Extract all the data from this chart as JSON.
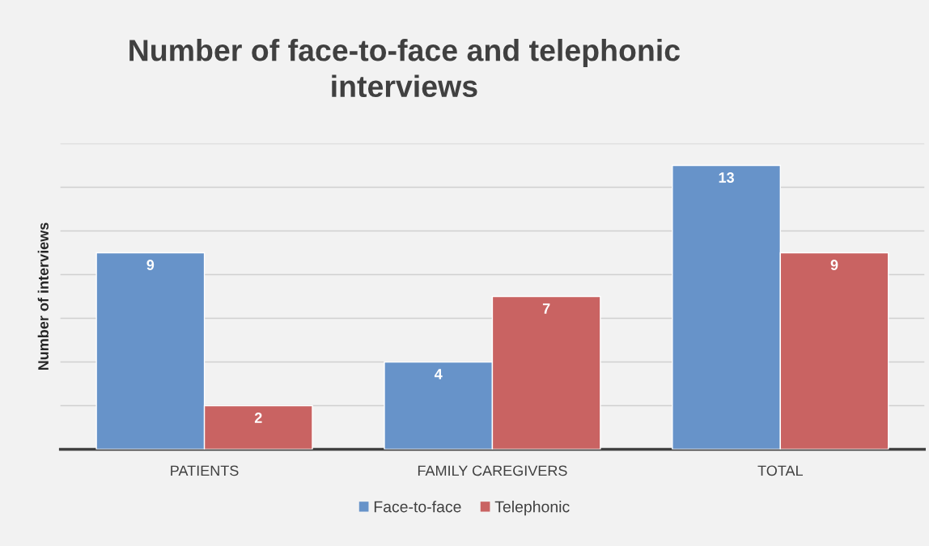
{
  "chart_data": {
    "type": "bar",
    "title": "Number of face-to-face and telephonic\ninterviews",
    "ylabel": "Number of interviews",
    "categories": [
      "PATIENTS",
      "FAMILY CAREGIVERS",
      "TOTAL"
    ],
    "series": [
      {
        "name": "Face-to-face",
        "color": "#6793c9",
        "values": [
          9,
          4,
          13
        ]
      },
      {
        "name": "Telephonic",
        "color": "#c96362",
        "values": [
          2,
          7,
          9
        ]
      }
    ],
    "ylim": [
      0,
      14
    ],
    "yticks": [
      {
        "value": 0,
        "label": null
      },
      {
        "value": 2,
        "label": null
      },
      {
        "value": 4,
        "label": null
      },
      {
        "value": 6,
        "label": null
      },
      {
        "value": 8,
        "label": null
      },
      {
        "value": 10,
        "label": null
      },
      {
        "value": 12,
        "label": null
      },
      {
        "value": 14,
        "label": null
      }
    ],
    "tick_labels": "x",
    "grid": "y",
    "legend": "bottom",
    "data_labels": true
  }
}
